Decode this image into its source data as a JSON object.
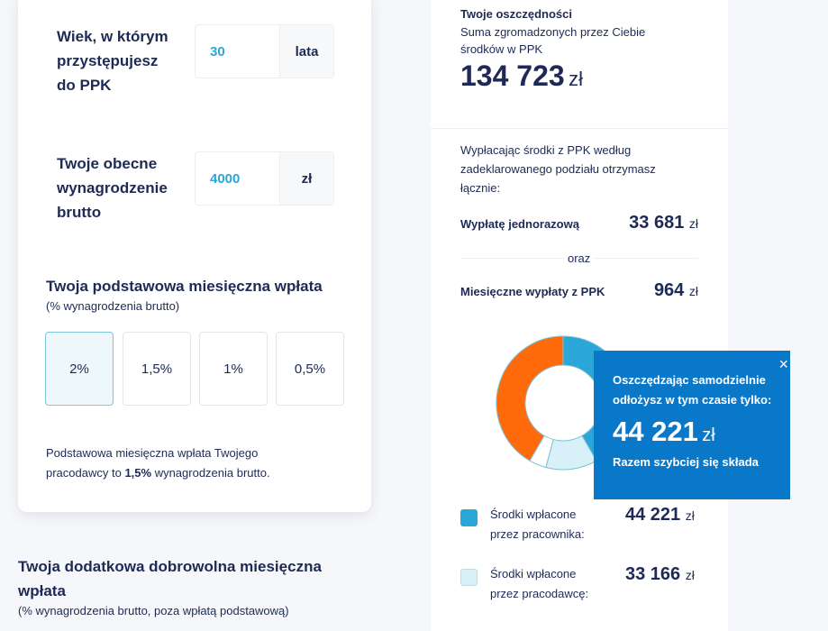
{
  "form": {
    "age": {
      "label_lines": [
        "Wiek, w którym",
        "przystępujesz",
        "do PPK"
      ],
      "value": "30",
      "unit": "lata"
    },
    "salary": {
      "label_lines": [
        "Twoje obecne",
        "wynagrodzenie",
        "brutto"
      ],
      "value": "4000",
      "unit": "zł"
    },
    "basic": {
      "title": "Twoja podstawowa miesięczna wpłata",
      "subtitle": "(% wynagrodzenia brutto)",
      "options": [
        "2%",
        "1,5%",
        "1%",
        "0,5%"
      ],
      "selected": "2%",
      "note_1": "Podstawowa miesięczna wpłata Twojego",
      "note_2a": "pracodawcy to ",
      "note_2b": "1,5%",
      "note_2c": " wynagrodzenia brutto."
    },
    "additional": {
      "title_1": "Twoja dodatkowa dobrowolna miesięczna",
      "title_2": "wpłata",
      "subtitle": "(% wynagrodzenia brutto, poza wpłatą podstawową)"
    }
  },
  "summary": {
    "title": "Twoje oszczędności",
    "desc_1": "Suma zgromadzonych przez Ciebie",
    "desc_2": "środków w PPK",
    "total": "134 723",
    "currency": "zł",
    "payout_1": "Wypłacając środki z PPK według",
    "payout_2": "zadeklarowanego podziału otrzymasz",
    "payout_3": "łącznie:",
    "lump_label": "Wypłatę jednorazową",
    "lump_value": "33 681",
    "or": "oraz",
    "monthly_label": "Miesięczne wypłaty z PPK",
    "monthly_value": "964",
    "legend": [
      {
        "line1": "Środki wpłacone",
        "line2": "przez pracownika:",
        "value": "44 221",
        "color": "#2aa7d8"
      },
      {
        "line1": "Środki wpłacone",
        "line2": "przez pracodawcę:",
        "value": "33 166",
        "color": "#d8f0f7"
      }
    ],
    "donut_colors": {
      "employee": "#2aa7d8",
      "employer": "#d8f0f7",
      "other": "#ffffff",
      "returns": "#ff6b0a"
    }
  },
  "tooltip": {
    "line1": "Oszczędzając samodzielnie",
    "line2": "odłożysz w tym czasie tylko:",
    "amount": "44 221",
    "currency": "zł",
    "footer": "Razem szybciej się składa",
    "close": "×"
  }
}
